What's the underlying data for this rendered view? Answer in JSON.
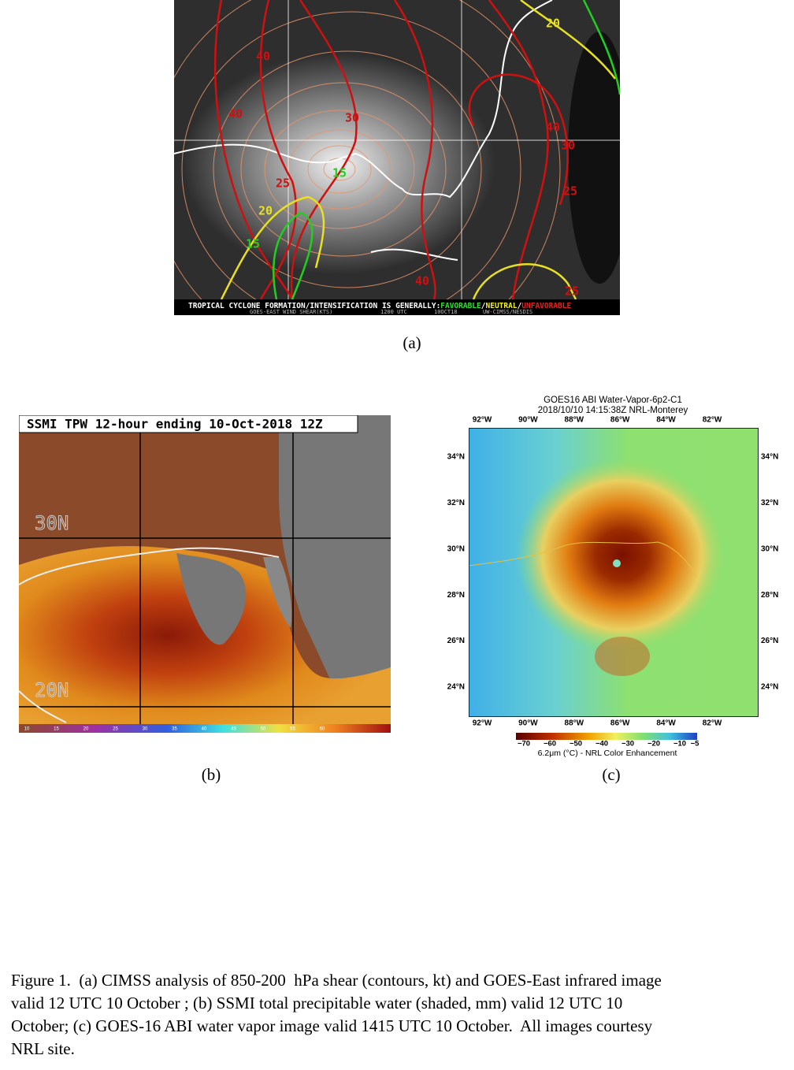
{
  "figure": {
    "panel_a": {
      "contour_labels": [
        "20",
        "40",
        "40",
        "30",
        "40",
        "30",
        "15",
        "25",
        "25",
        "20",
        "15",
        "40",
        "25"
      ],
      "banner": [
        "TROPICAL CYCLONE FORMATION/INTENSIFICATION IS GENERALLY:",
        "FAVORABLE",
        "/",
        "NEUTRAL",
        "/",
        "UNFAVORABLE"
      ],
      "subline": [
        "GOES-EAST WIND SHEAR(KTS)",
        "1200 UTC",
        "10OCT18",
        "UW-CIMSS/NESDIS"
      ],
      "label": "(a)"
    },
    "panel_b": {
      "title": "SSMI TPW 12-hour ending 10-Oct-2018 12Z",
      "lat_labels": [
        "30N",
        "20N"
      ],
      "colorbar_ticks": [
        "10",
        "15",
        "20",
        "25",
        "30",
        "35",
        "40",
        "45",
        "50",
        "55",
        "60"
      ],
      "label": "(b)"
    },
    "panel_c": {
      "title": [
        "GOES16 ABI Water-Vapor-6p2-C1",
        "2018/10/10 14:15:38Z NRL-Monterey"
      ],
      "lon_labels": [
        "92°W",
        "90°W",
        "88°W",
        "86°W",
        "84°W",
        "82°W"
      ],
      "lat_labels": [
        "34°N",
        "32°N",
        "30°N",
        "28°N",
        "26°N",
        "24°N"
      ],
      "colorbar_ticks": [
        "−70",
        "−60",
        "−50",
        "−40",
        "−30",
        "−20",
        "−10",
        "−5"
      ],
      "colorbar_label": "6.2μm (°C) - NRL Color Enhancement",
      "label": "(c)"
    },
    "caption": {
      "lines": [
        "Figure 1.  (a) CIMSS analysis of 850-200  hPa shear (contours, kt) and GOES-East infrared image",
        "valid 12 UTC 10 October ; (b) SSMI total precipitable water (shaded, mm) valid 12 UTC 10",
        "October; (c) GOES-16 ABI water vapor image valid 1415 UTC 10 October.  All images courtesy",
        "NRL site."
      ]
    }
  }
}
